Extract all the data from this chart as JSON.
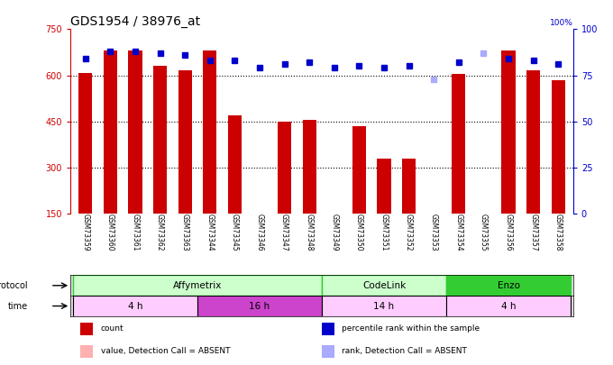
{
  "title": "GDS1954 / 38976_at",
  "samples": [
    "GSM73359",
    "GSM73360",
    "GSM73361",
    "GSM73362",
    "GSM73363",
    "GSM73344",
    "GSM73345",
    "GSM73346",
    "GSM73347",
    "GSM73348",
    "GSM73349",
    "GSM73350",
    "GSM73351",
    "GSM73352",
    "GSM73353",
    "GSM73354",
    "GSM73355",
    "GSM73356",
    "GSM73357",
    "GSM73358"
  ],
  "count_values": [
    607,
    680,
    680,
    630,
    615,
    680,
    470,
    150,
    450,
    455,
    150,
    435,
    330,
    330,
    150,
    604,
    150,
    680,
    615,
    585
  ],
  "count_absent": [
    false,
    false,
    false,
    false,
    false,
    false,
    false,
    true,
    false,
    false,
    false,
    false,
    false,
    false,
    true,
    false,
    true,
    false,
    false,
    false
  ],
  "rank_values": [
    84,
    88,
    88,
    87,
    86,
    83,
    83,
    79,
    81,
    82,
    79,
    80,
    79,
    80,
    73,
    82,
    87,
    84,
    83,
    81
  ],
  "rank_absent": [
    false,
    false,
    false,
    false,
    false,
    false,
    false,
    false,
    false,
    false,
    false,
    false,
    false,
    false,
    true,
    false,
    true,
    false,
    false,
    false
  ],
  "ylim_left": [
    150,
    750
  ],
  "ylim_right": [
    0,
    100
  ],
  "yticks_left": [
    150,
    300,
    450,
    600,
    750
  ],
  "yticks_right": [
    0,
    25,
    50,
    75,
    100
  ],
  "bar_color_normal": "#cc0000",
  "bar_color_absent": "#ffb0b0",
  "dot_color_normal": "#0000cc",
  "dot_color_absent": "#aaaaff",
  "protocol_groups": [
    {
      "label": "Affymetrix",
      "start": 0,
      "end": 9,
      "color": "#ccffcc",
      "border": "#33cc33"
    },
    {
      "label": "CodeLink",
      "start": 10,
      "end": 14,
      "color": "#ccffcc",
      "border": "#33cc33"
    },
    {
      "label": "Enzo",
      "start": 15,
      "end": 19,
      "color": "#33cc33",
      "border": "#33cc33"
    }
  ],
  "time_groups": [
    {
      "label": "4 h",
      "start": 0,
      "end": 4,
      "color": "#ffccff"
    },
    {
      "label": "16 h",
      "start": 5,
      "end": 9,
      "color": "#cc66cc"
    },
    {
      "label": "14 h",
      "start": 10,
      "end": 14,
      "color": "#ffccff"
    },
    {
      "label": "4 h",
      "start": 15,
      "end": 19,
      "color": "#ffccff"
    }
  ],
  "legend_items": [
    {
      "label": "count",
      "color": "#cc0000"
    },
    {
      "label": "percentile rank within the sample",
      "color": "#0000cc"
    },
    {
      "label": "value, Detection Call = ABSENT",
      "color": "#ffb0b0"
    },
    {
      "label": "rank, Detection Call = ABSENT",
      "color": "#aaaaff"
    }
  ],
  "bg_color": "#ffffff",
  "grid_dotted_at": [
    300,
    450,
    600
  ]
}
